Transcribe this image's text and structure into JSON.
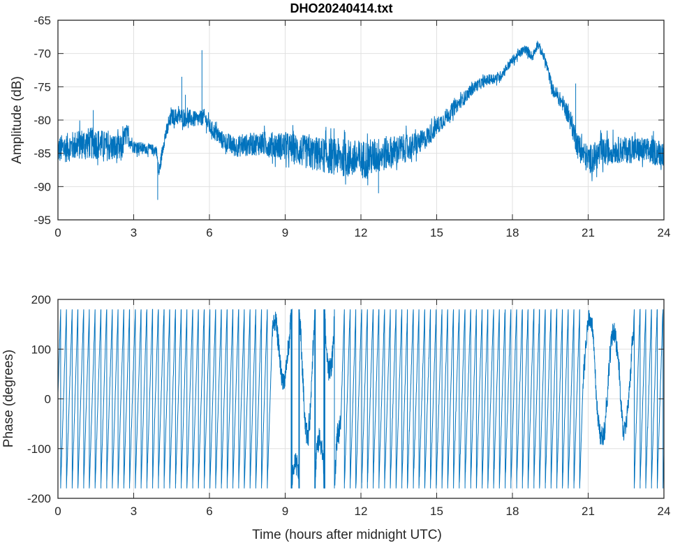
{
  "chart_data": [
    {
      "type": "line",
      "title": "DHO20240414.txt",
      "xlabel": "",
      "ylabel": "Amplitude (dB)",
      "xlim": [
        0,
        24
      ],
      "ylim": [
        -95,
        -65
      ],
      "xticks": [
        0,
        3,
        6,
        9,
        12,
        15,
        18,
        21,
        24
      ],
      "yticks": [
        -65,
        -70,
        -75,
        -80,
        -85,
        -90,
        -95
      ],
      "grid": true,
      "color": "#0072BD",
      "series_envelope": {
        "x": [
          0,
          0.5,
          1,
          1.5,
          2,
          2.5,
          2.7,
          3,
          3.5,
          3.9,
          4.0,
          4.2,
          4.5,
          5,
          5.5,
          5.8,
          6,
          6.5,
          7,
          8,
          9,
          10,
          11,
          12,
          12.5,
          13,
          14,
          14.5,
          15,
          15.5,
          16,
          16.5,
          17,
          17.5,
          18,
          18.5,
          18.8,
          19,
          19.3,
          19.6,
          20,
          20.3,
          20.6,
          21,
          21.5,
          22,
          22.5,
          23,
          24
        ],
        "y": [
          -84.5,
          -84,
          -83.5,
          -83.5,
          -84,
          -84.5,
          -82,
          -84,
          -84.3,
          -84.5,
          -88,
          -83,
          -79.5,
          -79.5,
          -80,
          -79.5,
          -81,
          -83,
          -84,
          -83.5,
          -84,
          -85,
          -85.5,
          -86,
          -85.5,
          -85,
          -84,
          -83,
          -81,
          -79,
          -77,
          -75,
          -74,
          -73.5,
          -71,
          -69.3,
          -70.5,
          -68.5,
          -71,
          -75.5,
          -77.5,
          -80,
          -84,
          -86,
          -85,
          -84.5,
          -84.5,
          -84.5,
          -85
        ],
        "noise": [
          2.2,
          2.2,
          2.4,
          2.4,
          2.2,
          2.2,
          1.6,
          1.0,
          0.8,
          0.8,
          1.0,
          1.2,
          1.2,
          1.4,
          1.2,
          1.2,
          1.2,
          1.4,
          1.6,
          1.8,
          2.2,
          2.6,
          2.8,
          3.0,
          2.8,
          2.6,
          2.0,
          1.6,
          1.4,
          1.2,
          1.0,
          0.9,
          0.8,
          0.8,
          0.7,
          0.7,
          0.7,
          0.7,
          0.8,
          1.0,
          1.2,
          1.6,
          2.0,
          2.2,
          2.2,
          2.0,
          2.0,
          2.0,
          2.0
        ]
      },
      "spikes": [
        [
          1.4,
          -78.5
        ],
        [
          3.95,
          -92
        ],
        [
          4.9,
          -73.5
        ],
        [
          5.05,
          -76.2
        ],
        [
          5.7,
          -69.5
        ],
        [
          12.7,
          -91
        ],
        [
          20.5,
          -74.5
        ]
      ]
    },
    {
      "type": "line",
      "title": "",
      "xlabel": "Time (hours after midnight UTC)",
      "ylabel": "Phase (degrees)",
      "xlim": [
        0,
        24
      ],
      "ylim": [
        -200,
        200
      ],
      "xticks": [
        0,
        3,
        6,
        9,
        12,
        15,
        18,
        21,
        24
      ],
      "yticks": [
        200,
        100,
        0,
        -100,
        -200
      ],
      "grid": true,
      "color": "#0072BD",
      "phase_wrap": [
        -180,
        180
      ],
      "segments": [
        {
          "from": 0,
          "to": 8.5,
          "cycles_per_hour": 4.4,
          "noise": 8
        },
        {
          "from": 8.5,
          "to": 9.5,
          "cycles_per_hour": 1.5,
          "noise": 40
        },
        {
          "from": 9.5,
          "to": 11.2,
          "cycles_per_hour": 2.5,
          "noise": 45
        },
        {
          "from": 11.2,
          "to": 20.8,
          "cycles_per_hour": 4.4,
          "noise": 10
        },
        {
          "from": 20.8,
          "to": 22.8,
          "cycles_per_hour": 1.8,
          "noise": 40
        },
        {
          "from": 22.8,
          "to": 24,
          "cycles_per_hour": 4.4,
          "noise": 10
        }
      ]
    }
  ]
}
